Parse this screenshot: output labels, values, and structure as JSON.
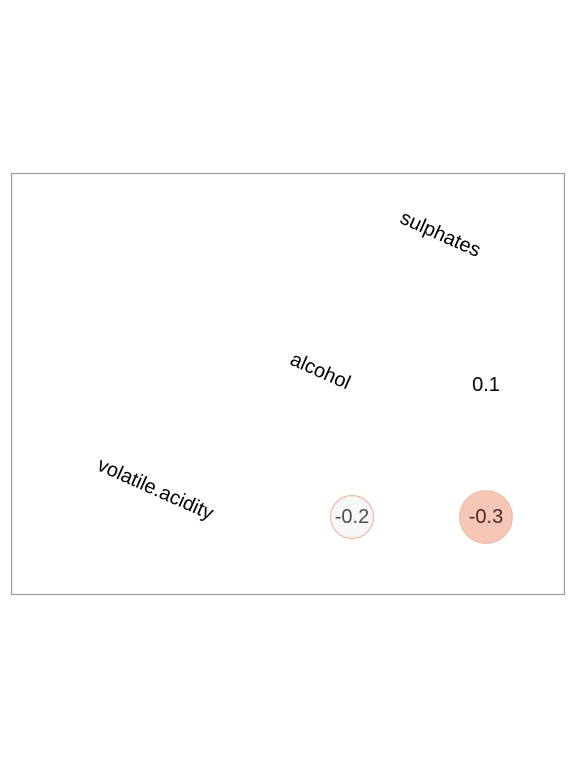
{
  "chart_data": {
    "type": "heatmap",
    "variables": [
      "volatile.acidity",
      "alcohol",
      "sulphates"
    ],
    "cells": [
      {
        "row": "alcohol",
        "col": "sulphates",
        "value": 0.1,
        "label": "0.1",
        "fill": "#FFFFFF",
        "text_color": "#000000"
      },
      {
        "row": "volatile.acidity",
        "col": "alcohol",
        "value": -0.2,
        "label": "-0.2",
        "fill": "#F7F7F7",
        "text_color": "#4D4D4D"
      },
      {
        "row": "volatile.acidity",
        "col": "sulphates",
        "value": -0.3,
        "label": "-0.3",
        "fill": "#F6C7B6",
        "text_color": "#4D2A22"
      }
    ],
    "value_range": [
      -1,
      1
    ],
    "color_scale": {
      "negative": "#E8735A",
      "neutral": "#FFFFFF",
      "positive": "#4575B4"
    },
    "grid": false,
    "legend": "none"
  }
}
